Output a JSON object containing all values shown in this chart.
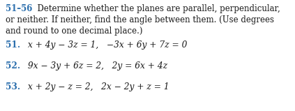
{
  "header_bold": "51–56",
  "line1_rest": "  Determine whether the planes are parallel, perpendicular,",
  "line2": "or neither. If neither, find the angle between them. (Use degrees",
  "line3": "and round to one decimal place.)",
  "p51_num": "51.",
  "p51_eq": " x + 4y − 3z = 1,   −3x + 6y + 7z = 0",
  "p52_num": "52.",
  "p52_eq": " 9x − 3y + 6z = 2,   2y = 6x + 4z",
  "p53_num": "53.",
  "p53_eq": " x + 2y − z = 2,   2x − 2y + z = 1",
  "header_color": "#2c6fad",
  "number_color": "#2c6fad",
  "text_color": "#1a1a1a",
  "bg_color": "#ffffff",
  "header_fontsize": 8.5,
  "body_fontsize": 8.5,
  "eq_fontsize": 8.8
}
